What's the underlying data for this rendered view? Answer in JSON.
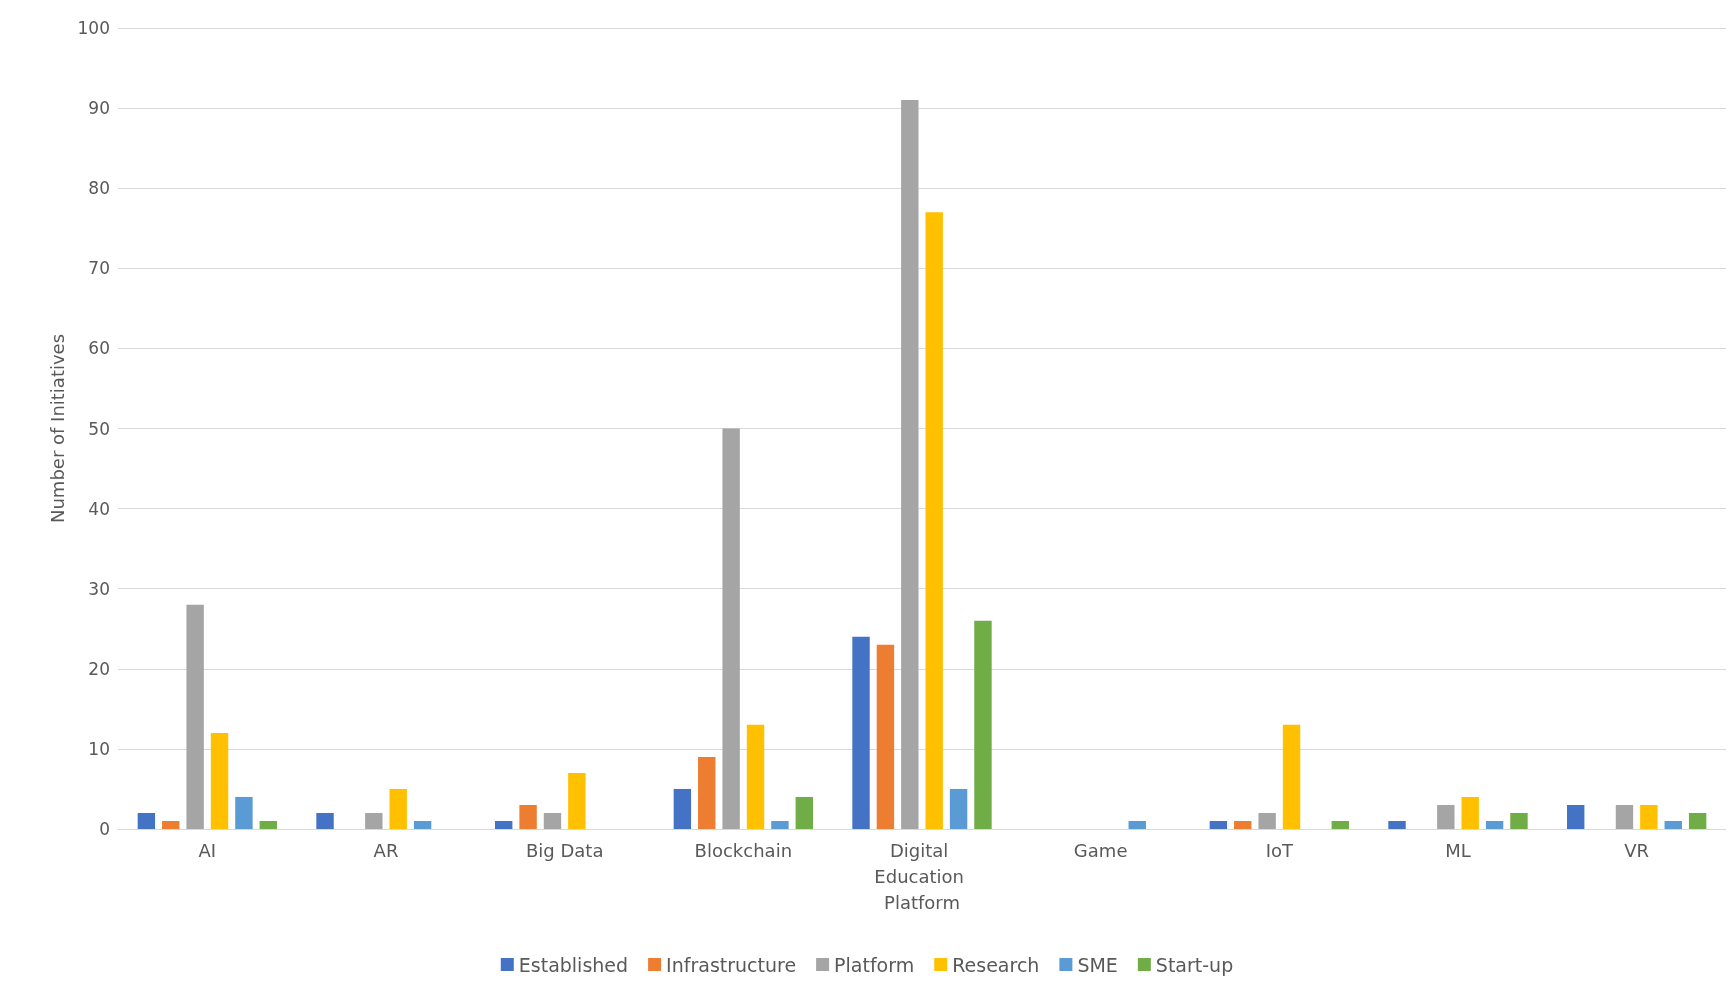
{
  "chart_data": {
    "type": "bar",
    "ylabel": "Number of Initiatives",
    "categories": [
      "AI",
      "AR",
      "Big Data",
      "Blockchain",
      "Digital Education Platform",
      "Game",
      "IoT",
      "ML",
      "VR"
    ],
    "series": [
      {
        "name": "Established",
        "color": "#4472c4",
        "values": [
          2,
          2,
          1,
          5,
          24,
          0,
          1,
          1,
          3
        ]
      },
      {
        "name": "Infrastructure",
        "color": "#ed7d31",
        "values": [
          1,
          0,
          3,
          9,
          23,
          0,
          1,
          0,
          0
        ]
      },
      {
        "name": "Platform",
        "color": "#a5a5a5",
        "values": [
          28,
          2,
          2,
          50,
          91,
          0,
          2,
          3,
          3
        ]
      },
      {
        "name": "Research",
        "color": "#ffc000",
        "values": [
          12,
          5,
          7,
          13,
          77,
          0,
          13,
          4,
          3
        ]
      },
      {
        "name": "SME",
        "color": "#5b9bd5",
        "values": [
          4,
          1,
          0,
          1,
          5,
          1,
          0,
          1,
          1
        ]
      },
      {
        "name": "Start-up",
        "color": "#70ad47",
        "values": [
          1,
          0,
          0,
          4,
          26,
          0,
          1,
          2,
          2
        ]
      }
    ],
    "ylim": [
      0,
      100
    ],
    "yticks": [
      0,
      10,
      20,
      30,
      40,
      50,
      60,
      70,
      80,
      90,
      100
    ],
    "grid": "y",
    "legend": "bottom"
  }
}
